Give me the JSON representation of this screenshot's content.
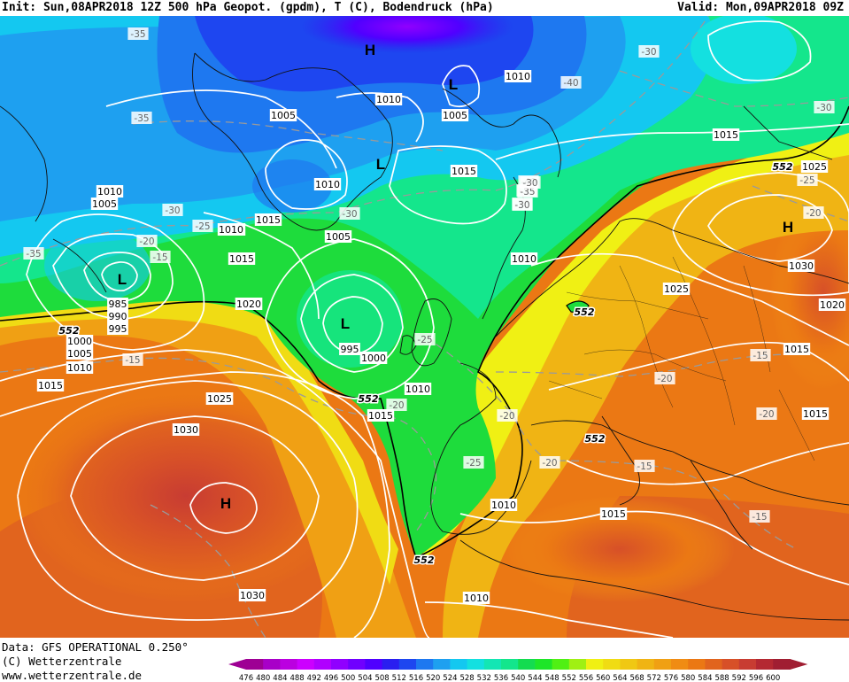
{
  "header": {
    "left": "Init: Sun,08APR2018 12Z 500 hPa Geopot. (gpdm), T (C), Bodendruck (hPa)",
    "right": "Valid: Mon,09APR2018 09Z"
  },
  "footer": {
    "line1": "Data: GFS OPERATIONAL 0.250°",
    "line2": "(C) Wetterzentrale",
    "line3": "www.wetterzentrale.de"
  },
  "colorbar": {
    "ticks": [
      "476",
      "480",
      "484",
      "488",
      "492",
      "496",
      "500",
      "504",
      "508",
      "512",
      "516",
      "520",
      "524",
      "528",
      "532",
      "536",
      "540",
      "544",
      "548",
      "552",
      "556",
      "560",
      "564",
      "568",
      "572",
      "576",
      "580",
      "584",
      "588",
      "592",
      "596",
      "600"
    ],
    "colors": [
      "#9e0094",
      "#a800c8",
      "#bb00e0",
      "#cc00ff",
      "#b000ff",
      "#9000ff",
      "#7000ff",
      "#5000ff",
      "#2a1ef0",
      "#1e46f0",
      "#1e78f0",
      "#1ea0f0",
      "#14c8f0",
      "#14e0e0",
      "#14e6b4",
      "#14e68c",
      "#14dc50",
      "#1ee628",
      "#50f014",
      "#a0f014",
      "#f0f014",
      "#f0dc14",
      "#f0c814",
      "#f0b414",
      "#f0a014",
      "#f08c14",
      "#eb7814",
      "#e1641e",
      "#d75028",
      "#c83c32",
      "#b42832",
      "#a01e32"
    ]
  },
  "map_labels": {
    "isobars": [
      "1010",
      "1005",
      "1010",
      "1015",
      "1010",
      "1020",
      "1005",
      "1010",
      "1005",
      "1015",
      "1015",
      "1010",
      "1015",
      "1010",
      "1010",
      "1010",
      "1005",
      "1000",
      "995",
      "1025",
      "985",
      "990",
      "995",
      "1000",
      "1005",
      "1010",
      "1015",
      "1020",
      "1025",
      "1030",
      "1030",
      "1030",
      "1025",
      "1025",
      "1015",
      "1015",
      "1020",
      "1015",
      "1010",
      "1010",
      "1000",
      "1015"
    ],
    "temperatures": [
      "-35",
      "-35",
      "-30",
      "-35",
      "-25",
      "-20",
      "-15",
      "-30",
      "-30",
      "-25",
      "-15",
      "-30",
      "-30",
      "-35",
      "-40",
      "-40",
      "-35",
      "-30",
      "-25",
      "-20",
      "-20",
      "-20",
      "-20",
      "-15",
      "-15",
      "-20",
      "-15",
      "-20",
      "-25",
      "-30"
    ],
    "geopotential": [
      "552",
      "552",
      "552",
      "552",
      "552",
      "552",
      "552"
    ],
    "pressure_centers": [
      "H",
      "L",
      "H",
      "L",
      "L",
      "L",
      "L",
      "H"
    ]
  }
}
